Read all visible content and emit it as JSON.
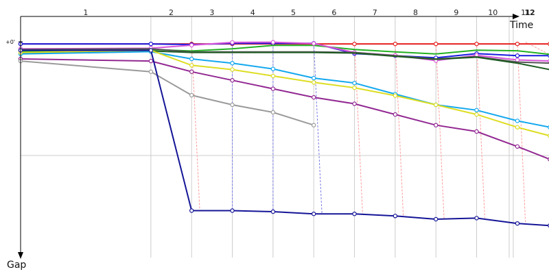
{
  "chart_data": {
    "type": "line",
    "title": "",
    "xlabel": "Time",
    "ylabel": "Gap",
    "y_tick_label": "+0'",
    "x_range": [
      0,
      13
    ],
    "y_range": [
      0,
      100
    ],
    "laps": [
      {
        "lap": 1,
        "label": "1",
        "x": 0
      },
      {
        "lap": 2,
        "label": "2",
        "x": 3.2
      },
      {
        "lap": 3,
        "label": "3",
        "x": 4.2
      },
      {
        "lap": 4,
        "label": "4",
        "x": 5.2
      },
      {
        "lap": 5,
        "label": "5",
        "x": 6.2
      },
      {
        "lap": 6,
        "label": "6",
        "x": 7.2
      },
      {
        "lap": 7,
        "label": "7",
        "x": 8.2
      },
      {
        "lap": 8,
        "label": "8",
        "x": 9.2
      },
      {
        "lap": 9,
        "label": "9",
        "x": 10.2
      },
      {
        "lap": 10,
        "label": "10",
        "x": 11.2
      },
      {
        "lap": 11,
        "label": "11",
        "x": 12.0
      },
      {
        "lap": 12,
        "label": "12",
        "x": 12.1
      }
    ],
    "grid": true,
    "series": [
      {
        "color": "#e62020",
        "marker": true,
        "points": [
          [
            0,
            1.0
          ],
          [
            3.2,
            1.0
          ],
          [
            4.2,
            1.0
          ],
          [
            5.2,
            1.0
          ],
          [
            6.2,
            1.0
          ],
          [
            7.2,
            1.0
          ],
          [
            8.2,
            1.0
          ],
          [
            9.2,
            1.0
          ],
          [
            10.2,
            1.0
          ],
          [
            11.2,
            1.0
          ],
          [
            12.2,
            1.0
          ],
          [
            13.0,
            1.0
          ]
        ]
      },
      {
        "color": "#1a1ae0",
        "marker": true,
        "points": [
          [
            0,
            1.0
          ],
          [
            3.2,
            1.0
          ],
          [
            4.2,
            1.3
          ],
          [
            5.2,
            0.7
          ],
          [
            6.2,
            0.7
          ],
          [
            7.2,
            0.7
          ],
          [
            8.2,
            5.5
          ],
          [
            9.2,
            6.5
          ],
          [
            10.2,
            7.5
          ],
          [
            11.2,
            5.5
          ],
          [
            12.2,
            6.5
          ],
          [
            13.0,
            6.5
          ]
        ]
      },
      {
        "color": "#22b022",
        "marker": false,
        "points": [
          [
            0,
            4.5
          ],
          [
            3.2,
            3.6
          ],
          [
            4.2,
            4.3
          ],
          [
            5.2,
            3.3
          ],
          [
            6.2,
            1.7
          ],
          [
            7.2,
            1.7
          ],
          [
            8.2,
            3.6
          ],
          [
            9.2,
            4.7
          ],
          [
            10.2,
            5.7
          ],
          [
            11.2,
            3.9
          ],
          [
            12.2,
            4.2
          ],
          [
            13.0,
            5.9
          ]
        ]
      },
      {
        "color": "#d855d8",
        "marker": true,
        "points": [
          [
            0,
            3.3
          ],
          [
            3.2,
            3.0
          ],
          [
            4.2,
            1.6
          ],
          [
            5.2,
            0.3
          ],
          [
            6.2,
            0.2
          ],
          [
            7.2,
            0.8
          ],
          [
            8.2,
            5.0
          ],
          [
            9.2,
            6.3
          ],
          [
            10.2,
            8.8
          ],
          [
            11.2,
            6.3
          ],
          [
            12.2,
            8.5
          ],
          [
            13.0,
            9.0
          ]
        ]
      },
      {
        "color": "#555555",
        "marker": false,
        "points": [
          [
            0,
            3.6
          ],
          [
            3.2,
            3.3
          ],
          [
            4.2,
            4.7
          ],
          [
            5.2,
            4.7
          ],
          [
            6.2,
            4.7
          ],
          [
            7.2,
            4.7
          ],
          [
            8.2,
            5.0
          ],
          [
            9.2,
            6.5
          ],
          [
            10.2,
            8.0
          ],
          [
            11.2,
            7.0
          ],
          [
            12.2,
            9.5
          ],
          [
            13.0,
            10.0
          ]
        ]
      },
      {
        "color": "#1e5b22",
        "marker": false,
        "points": [
          [
            0,
            5.3
          ],
          [
            3.2,
            4.3
          ],
          [
            4.2,
            5.0
          ],
          [
            5.2,
            5.0
          ],
          [
            6.2,
            5.0
          ],
          [
            7.2,
            5.0
          ],
          [
            8.2,
            5.3
          ],
          [
            9.2,
            6.8
          ],
          [
            10.2,
            8.2
          ],
          [
            11.2,
            7.2
          ],
          [
            12.2,
            10.0
          ],
          [
            13.0,
            13.0
          ]
        ]
      },
      {
        "color": "#12a8ee",
        "marker": true,
        "points": [
          [
            0,
            5.7
          ],
          [
            3.2,
            4.6
          ],
          [
            4.2,
            8.0
          ],
          [
            5.2,
            10.0
          ],
          [
            6.2,
            12.7
          ],
          [
            7.2,
            17.0
          ],
          [
            8.2,
            19.3
          ],
          [
            9.2,
            24.5
          ],
          [
            10.2,
            29.5
          ],
          [
            11.2,
            32.0
          ],
          [
            12.2,
            37.0
          ],
          [
            13.0,
            40.0
          ]
        ]
      },
      {
        "color": "#dddd22",
        "marker": true,
        "points": [
          [
            0,
            5.0
          ],
          [
            3.2,
            4.0
          ],
          [
            4.2,
            11.0
          ],
          [
            5.2,
            13.0
          ],
          [
            6.2,
            16.0
          ],
          [
            7.2,
            19.0
          ],
          [
            8.2,
            21.5
          ],
          [
            9.2,
            25.2
          ],
          [
            10.2,
            29.5
          ],
          [
            11.2,
            34.0
          ],
          [
            12.2,
            40.0
          ],
          [
            13.0,
            44.0
          ]
        ]
      },
      {
        "color": "#922892",
        "marker": true,
        "points": [
          [
            0,
            8.0
          ],
          [
            3.2,
            9.0
          ],
          [
            4.2,
            14.0
          ],
          [
            5.2,
            18.0
          ],
          [
            6.2,
            22.0
          ],
          [
            7.2,
            26.0
          ],
          [
            8.2,
            29.0
          ],
          [
            9.2,
            34.0
          ],
          [
            10.2,
            39.0
          ],
          [
            11.2,
            42.0
          ],
          [
            12.2,
            49.0
          ],
          [
            13.0,
            55.0
          ]
        ]
      },
      {
        "color": "#9a9a9a",
        "marker": true,
        "points": [
          [
            0,
            9.0
          ],
          [
            3.2,
            14.0
          ],
          [
            4.2,
            25.0
          ],
          [
            5.2,
            29.5
          ],
          [
            6.2,
            33.0
          ],
          [
            7.2,
            39.0
          ]
        ]
      },
      {
        "color": "#141497",
        "marker": true,
        "points": [
          [
            0,
            4.0
          ],
          [
            3.2,
            4.0
          ],
          [
            4.2,
            79.0
          ],
          [
            5.2,
            79.0
          ],
          [
            6.2,
            79.5
          ],
          [
            7.2,
            80.5
          ],
          [
            8.2,
            80.5
          ],
          [
            9.2,
            81.5
          ],
          [
            10.2,
            83.0
          ],
          [
            11.2,
            82.5
          ],
          [
            12.2,
            85.0
          ],
          [
            13.0,
            86.0
          ]
        ]
      }
    ],
    "traces": [
      {
        "color": "#7b7be6",
        "points": [
          [
            5.2,
            0.7
          ],
          [
            5.2,
            79.0
          ]
        ]
      },
      {
        "color": "#7b7be6",
        "points": [
          [
            6.2,
            0.7
          ],
          [
            6.2,
            79.5
          ]
        ]
      },
      {
        "color": "#7b7be6",
        "points": [
          [
            7.2,
            0.7
          ],
          [
            7.4,
            80.5
          ]
        ]
      },
      {
        "color": "#ff9a9a",
        "points": [
          [
            3.2,
            0.2
          ],
          [
            3.25,
            4.0
          ]
        ]
      },
      {
        "color": "#ff9a9a",
        "points": [
          [
            4.2,
            0.2
          ],
          [
            4.4,
            79.0
          ]
        ]
      },
      {
        "color": "#ff9a9a",
        "points": [
          [
            8.2,
            0.2
          ],
          [
            8.4,
            80.5
          ]
        ]
      },
      {
        "color": "#ff9a9a",
        "points": [
          [
            9.2,
            0.2
          ],
          [
            9.4,
            81.5
          ]
        ]
      },
      {
        "color": "#ff9a9a",
        "points": [
          [
            10.2,
            0.2
          ],
          [
            10.4,
            83.0
          ]
        ]
      },
      {
        "color": "#ff9a9a",
        "points": [
          [
            11.2,
            0.2
          ],
          [
            11.4,
            82.5
          ]
        ]
      },
      {
        "color": "#ff9a9a",
        "points": [
          [
            12.2,
            0.2
          ],
          [
            12.4,
            85.0
          ]
        ]
      },
      {
        "color": "#ff9a9a",
        "points": [
          [
            12.4,
            0.2
          ],
          [
            13.0,
            6.0
          ]
        ]
      }
    ]
  }
}
